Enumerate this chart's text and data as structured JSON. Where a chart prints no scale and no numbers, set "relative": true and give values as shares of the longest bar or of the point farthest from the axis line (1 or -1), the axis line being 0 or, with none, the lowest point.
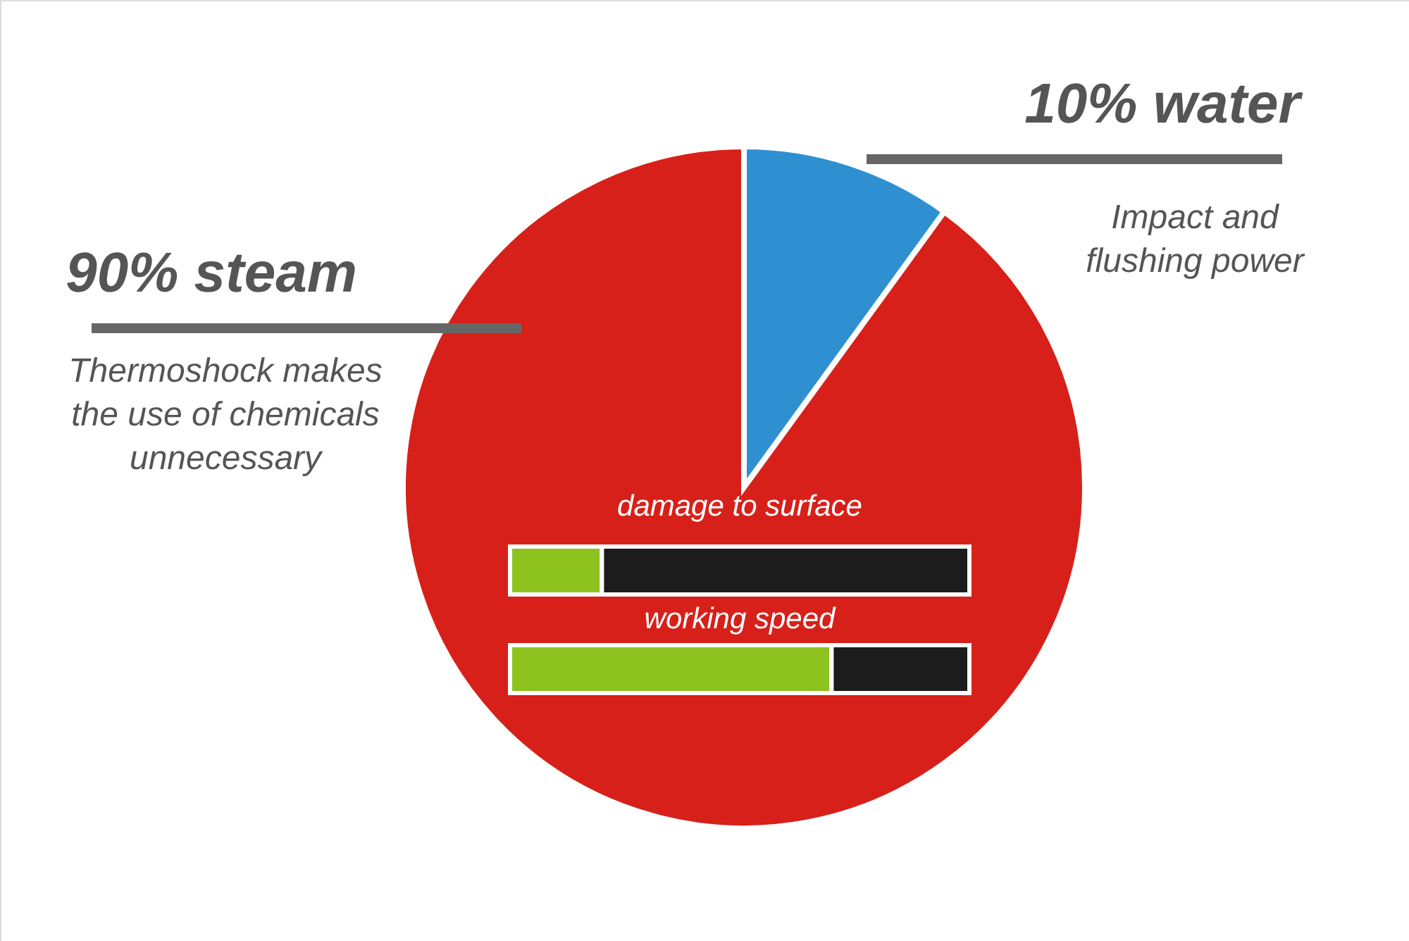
{
  "chart_data": [
    {
      "type": "pie",
      "categories": [
        "water",
        "steam"
      ],
      "values": [
        10,
        90
      ],
      "colors": [
        "#2e90d1",
        "#d72019"
      ],
      "value_labels": [
        "10%",
        "90%"
      ],
      "annotations": [
        "Impact and\nflushing power",
        "Thermoshock makes\nthe use of chemicals\nunnecessary"
      ]
    },
    {
      "type": "bar",
      "orientation": "horizontal",
      "stacked": true,
      "relative": true,
      "categories": [
        "damage to surface",
        "working speed"
      ],
      "series": [
        {
          "color": "#8dc21f",
          "values": [
            0.2,
            0.7
          ]
        },
        {
          "color": "#1c1c1c",
          "values": [
            0.8,
            0.3
          ]
        }
      ]
    }
  ]
}
